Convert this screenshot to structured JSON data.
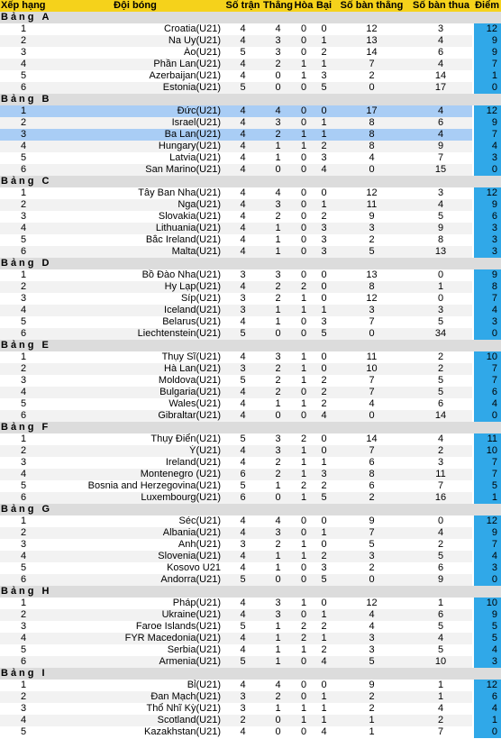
{
  "headers": {
    "rank": "Xếp hạng",
    "team": "Đội bóng",
    "played": "Số trận",
    "won": "Thắng",
    "drawn": "Hòa",
    "lost": "Bại",
    "goals_for": "Số bàn thắng",
    "goals_against": "Số bàn thua",
    "points": "Điểm"
  },
  "colors": {
    "header": "#f5d21b",
    "group_row": "#dcdcdc",
    "alt_row": "#f2f2f2",
    "highlight_row": "#a9cdf5",
    "points_cell": "#30a8e8"
  },
  "groups": [
    {
      "label": "Bảng",
      "letter": "A",
      "rows": [
        {
          "rank": "1",
          "team": "Croatia(U21)",
          "p": "4",
          "w": "4",
          "d": "0",
          "l": "0",
          "gf": "12",
          "ga": "3",
          "pts": "12"
        },
        {
          "rank": "2",
          "team": "Na Uy(U21)",
          "p": "4",
          "w": "3",
          "d": "0",
          "l": "1",
          "gf": "13",
          "ga": "4",
          "pts": "9"
        },
        {
          "rank": "3",
          "team": "Áo(U21)",
          "p": "5",
          "w": "3",
          "d": "0",
          "l": "2",
          "gf": "14",
          "ga": "6",
          "pts": "9"
        },
        {
          "rank": "4",
          "team": "Phần Lan(U21)",
          "p": "4",
          "w": "2",
          "d": "1",
          "l": "1",
          "gf": "7",
          "ga": "4",
          "pts": "7"
        },
        {
          "rank": "5",
          "team": "Azerbaijan(U21)",
          "p": "4",
          "w": "0",
          "d": "1",
          "l": "3",
          "gf": "2",
          "ga": "14",
          "pts": "1"
        },
        {
          "rank": "6",
          "team": "Estonia(U21)",
          "p": "5",
          "w": "0",
          "d": "0",
          "l": "5",
          "gf": "0",
          "ga": "17",
          "pts": "0"
        }
      ]
    },
    {
      "label": "Bảng",
      "letter": "B",
      "rows": [
        {
          "rank": "1",
          "team": "Đức(U21)",
          "p": "4",
          "w": "4",
          "d": "0",
          "l": "0",
          "gf": "17",
          "ga": "4",
          "pts": "12",
          "hl": true
        },
        {
          "rank": "2",
          "team": "Israel(U21)",
          "p": "4",
          "w": "3",
          "d": "0",
          "l": "1",
          "gf": "8",
          "ga": "6",
          "pts": "9"
        },
        {
          "rank": "3",
          "team": "Ba Lan(U21)",
          "p": "4",
          "w": "2",
          "d": "1",
          "l": "1",
          "gf": "8",
          "ga": "4",
          "pts": "7",
          "hl": true
        },
        {
          "rank": "4",
          "team": "Hungary(U21)",
          "p": "4",
          "w": "1",
          "d": "1",
          "l": "2",
          "gf": "8",
          "ga": "9",
          "pts": "4"
        },
        {
          "rank": "5",
          "team": "Latvia(U21)",
          "p": "4",
          "w": "1",
          "d": "0",
          "l": "3",
          "gf": "4",
          "ga": "7",
          "pts": "3"
        },
        {
          "rank": "6",
          "team": "San Marino(U21)",
          "p": "4",
          "w": "0",
          "d": "0",
          "l": "4",
          "gf": "0",
          "ga": "15",
          "pts": "0"
        }
      ]
    },
    {
      "label": "Bảng",
      "letter": "C",
      "rows": [
        {
          "rank": "1",
          "team": "Tây Ban Nha(U21)",
          "p": "4",
          "w": "4",
          "d": "0",
          "l": "0",
          "gf": "12",
          "ga": "3",
          "pts": "12"
        },
        {
          "rank": "2",
          "team": "Nga(U21)",
          "p": "4",
          "w": "3",
          "d": "0",
          "l": "1",
          "gf": "11",
          "ga": "4",
          "pts": "9"
        },
        {
          "rank": "3",
          "team": "Slovakia(U21)",
          "p": "4",
          "w": "2",
          "d": "0",
          "l": "2",
          "gf": "9",
          "ga": "5",
          "pts": "6"
        },
        {
          "rank": "4",
          "team": "Lithuania(U21)",
          "p": "4",
          "w": "1",
          "d": "0",
          "l": "3",
          "gf": "3",
          "ga": "9",
          "pts": "3"
        },
        {
          "rank": "5",
          "team": "Bắc Ireland(U21)",
          "p": "4",
          "w": "1",
          "d": "0",
          "l": "3",
          "gf": "2",
          "ga": "8",
          "pts": "3"
        },
        {
          "rank": "6",
          "team": "Malta(U21)",
          "p": "4",
          "w": "1",
          "d": "0",
          "l": "3",
          "gf": "5",
          "ga": "13",
          "pts": "3"
        }
      ]
    },
    {
      "label": "Bảng",
      "letter": "D",
      "rows": [
        {
          "rank": "1",
          "team": "Bồ Đào Nha(U21)",
          "p": "3",
          "w": "3",
          "d": "0",
          "l": "0",
          "gf": "13",
          "ga": "0",
          "pts": "9"
        },
        {
          "rank": "2",
          "team": "Hy Lạp(U21)",
          "p": "4",
          "w": "2",
          "d": "2",
          "l": "0",
          "gf": "8",
          "ga": "1",
          "pts": "8"
        },
        {
          "rank": "3",
          "team": "Síp(U21)",
          "p": "3",
          "w": "2",
          "d": "1",
          "l": "0",
          "gf": "12",
          "ga": "0",
          "pts": "7"
        },
        {
          "rank": "4",
          "team": "Iceland(U21)",
          "p": "3",
          "w": "1",
          "d": "1",
          "l": "1",
          "gf": "3",
          "ga": "3",
          "pts": "4"
        },
        {
          "rank": "5",
          "team": "Belarus(U21)",
          "p": "4",
          "w": "1",
          "d": "0",
          "l": "3",
          "gf": "7",
          "ga": "5",
          "pts": "3"
        },
        {
          "rank": "6",
          "team": "Liechtenstein(U21)",
          "p": "5",
          "w": "0",
          "d": "0",
          "l": "5",
          "gf": "0",
          "ga": "34",
          "pts": "0"
        }
      ]
    },
    {
      "label": "Bảng",
      "letter": "E",
      "rows": [
        {
          "rank": "1",
          "team": "Thụy Sĩ(U21)",
          "p": "4",
          "w": "3",
          "d": "1",
          "l": "0",
          "gf": "11",
          "ga": "2",
          "pts": "10"
        },
        {
          "rank": "2",
          "team": "Hà Lan(U21)",
          "p": "3",
          "w": "2",
          "d": "1",
          "l": "0",
          "gf": "10",
          "ga": "2",
          "pts": "7"
        },
        {
          "rank": "3",
          "team": "Moldova(U21)",
          "p": "5",
          "w": "2",
          "d": "1",
          "l": "2",
          "gf": "7",
          "ga": "5",
          "pts": "7"
        },
        {
          "rank": "4",
          "team": "Bulgaria(U21)",
          "p": "4",
          "w": "2",
          "d": "0",
          "l": "2",
          "gf": "7",
          "ga": "5",
          "pts": "6"
        },
        {
          "rank": "5",
          "team": "Wales(U21)",
          "p": "4",
          "w": "1",
          "d": "1",
          "l": "2",
          "gf": "4",
          "ga": "6",
          "pts": "4"
        },
        {
          "rank": "6",
          "team": "Gibraltar(U21)",
          "p": "4",
          "w": "0",
          "d": "0",
          "l": "4",
          "gf": "0",
          "ga": "14",
          "pts": "0"
        }
      ]
    },
    {
      "label": "Bảng",
      "letter": "F",
      "rows": [
        {
          "rank": "1",
          "team": "Thụy Điển(U21)",
          "p": "5",
          "w": "3",
          "d": "2",
          "l": "0",
          "gf": "14",
          "ga": "4",
          "pts": "11"
        },
        {
          "rank": "2",
          "team": "Ý(U21)",
          "p": "4",
          "w": "3",
          "d": "1",
          "l": "0",
          "gf": "7",
          "ga": "2",
          "pts": "10"
        },
        {
          "rank": "3",
          "team": "Ireland(U21)",
          "p": "4",
          "w": "2",
          "d": "1",
          "l": "1",
          "gf": "6",
          "ga": "3",
          "pts": "7"
        },
        {
          "rank": "4",
          "team": "Montenegro (U21)",
          "p": "6",
          "w": "2",
          "d": "1",
          "l": "3",
          "gf": "8",
          "ga": "11",
          "pts": "7"
        },
        {
          "rank": "5",
          "team": "Bosnia and Herzegovina(U21)",
          "p": "5",
          "w": "1",
          "d": "2",
          "l": "2",
          "gf": "6",
          "ga": "7",
          "pts": "5"
        },
        {
          "rank": "6",
          "team": "Luxembourg(U21)",
          "p": "6",
          "w": "0",
          "d": "1",
          "l": "5",
          "gf": "2",
          "ga": "16",
          "pts": "1"
        }
      ]
    },
    {
      "label": "Bảng",
      "letter": "G",
      "rows": [
        {
          "rank": "1",
          "team": "Séc(U21)",
          "p": "4",
          "w": "4",
          "d": "0",
          "l": "0",
          "gf": "9",
          "ga": "0",
          "pts": "12"
        },
        {
          "rank": "2",
          "team": "Albania(U21)",
          "p": "4",
          "w": "3",
          "d": "0",
          "l": "1",
          "gf": "7",
          "ga": "4",
          "pts": "9"
        },
        {
          "rank": "3",
          "team": "Anh(U21)",
          "p": "3",
          "w": "2",
          "d": "1",
          "l": "0",
          "gf": "5",
          "ga": "2",
          "pts": "7"
        },
        {
          "rank": "4",
          "team": "Slovenia(U21)",
          "p": "4",
          "w": "1",
          "d": "1",
          "l": "2",
          "gf": "3",
          "ga": "5",
          "pts": "4"
        },
        {
          "rank": "5",
          "team": "Kosovo U21",
          "p": "4",
          "w": "1",
          "d": "0",
          "l": "3",
          "gf": "2",
          "ga": "6",
          "pts": "3"
        },
        {
          "rank": "6",
          "team": "Andorra(U21)",
          "p": "5",
          "w": "0",
          "d": "0",
          "l": "5",
          "gf": "0",
          "ga": "9",
          "pts": "0"
        }
      ]
    },
    {
      "label": "Bảng",
      "letter": "H",
      "rows": [
        {
          "rank": "1",
          "team": "Pháp(U21)",
          "p": "4",
          "w": "3",
          "d": "1",
          "l": "0",
          "gf": "12",
          "ga": "1",
          "pts": "10"
        },
        {
          "rank": "2",
          "team": "Ukraine(U21)",
          "p": "4",
          "w": "3",
          "d": "0",
          "l": "1",
          "gf": "4",
          "ga": "6",
          "pts": "9"
        },
        {
          "rank": "3",
          "team": "Faroe Islands(U21)",
          "p": "5",
          "w": "1",
          "d": "2",
          "l": "2",
          "gf": "4",
          "ga": "5",
          "pts": "5"
        },
        {
          "rank": "4",
          "team": "FYR Macedonia(U21)",
          "p": "4",
          "w": "1",
          "d": "2",
          "l": "1",
          "gf": "3",
          "ga": "4",
          "pts": "5"
        },
        {
          "rank": "5",
          "team": "Serbia(U21)",
          "p": "4",
          "w": "1",
          "d": "1",
          "l": "2",
          "gf": "3",
          "ga": "5",
          "pts": "4"
        },
        {
          "rank": "6",
          "team": "Armenia(U21)",
          "p": "5",
          "w": "1",
          "d": "0",
          "l": "4",
          "gf": "5",
          "ga": "10",
          "pts": "3"
        }
      ]
    },
    {
      "label": "Bảng",
      "letter": "I",
      "rows": [
        {
          "rank": "1",
          "team": "Bỉ(U21)",
          "p": "4",
          "w": "4",
          "d": "0",
          "l": "0",
          "gf": "9",
          "ga": "1",
          "pts": "12"
        },
        {
          "rank": "2",
          "team": "Đan Mạch(U21)",
          "p": "3",
          "w": "2",
          "d": "0",
          "l": "1",
          "gf": "2",
          "ga": "1",
          "pts": "6"
        },
        {
          "rank": "3",
          "team": "Thổ Nhĩ Kỳ(U21)",
          "p": "3",
          "w": "1",
          "d": "1",
          "l": "1",
          "gf": "2",
          "ga": "4",
          "pts": "4"
        },
        {
          "rank": "4",
          "team": "Scotland(U21)",
          "p": "2",
          "w": "0",
          "d": "1",
          "l": "1",
          "gf": "1",
          "ga": "2",
          "pts": "1"
        },
        {
          "rank": "5",
          "team": "Kazakhstan(U21)",
          "p": "4",
          "w": "0",
          "d": "0",
          "l": "4",
          "gf": "1",
          "ga": "7",
          "pts": "0"
        }
      ]
    }
  ]
}
